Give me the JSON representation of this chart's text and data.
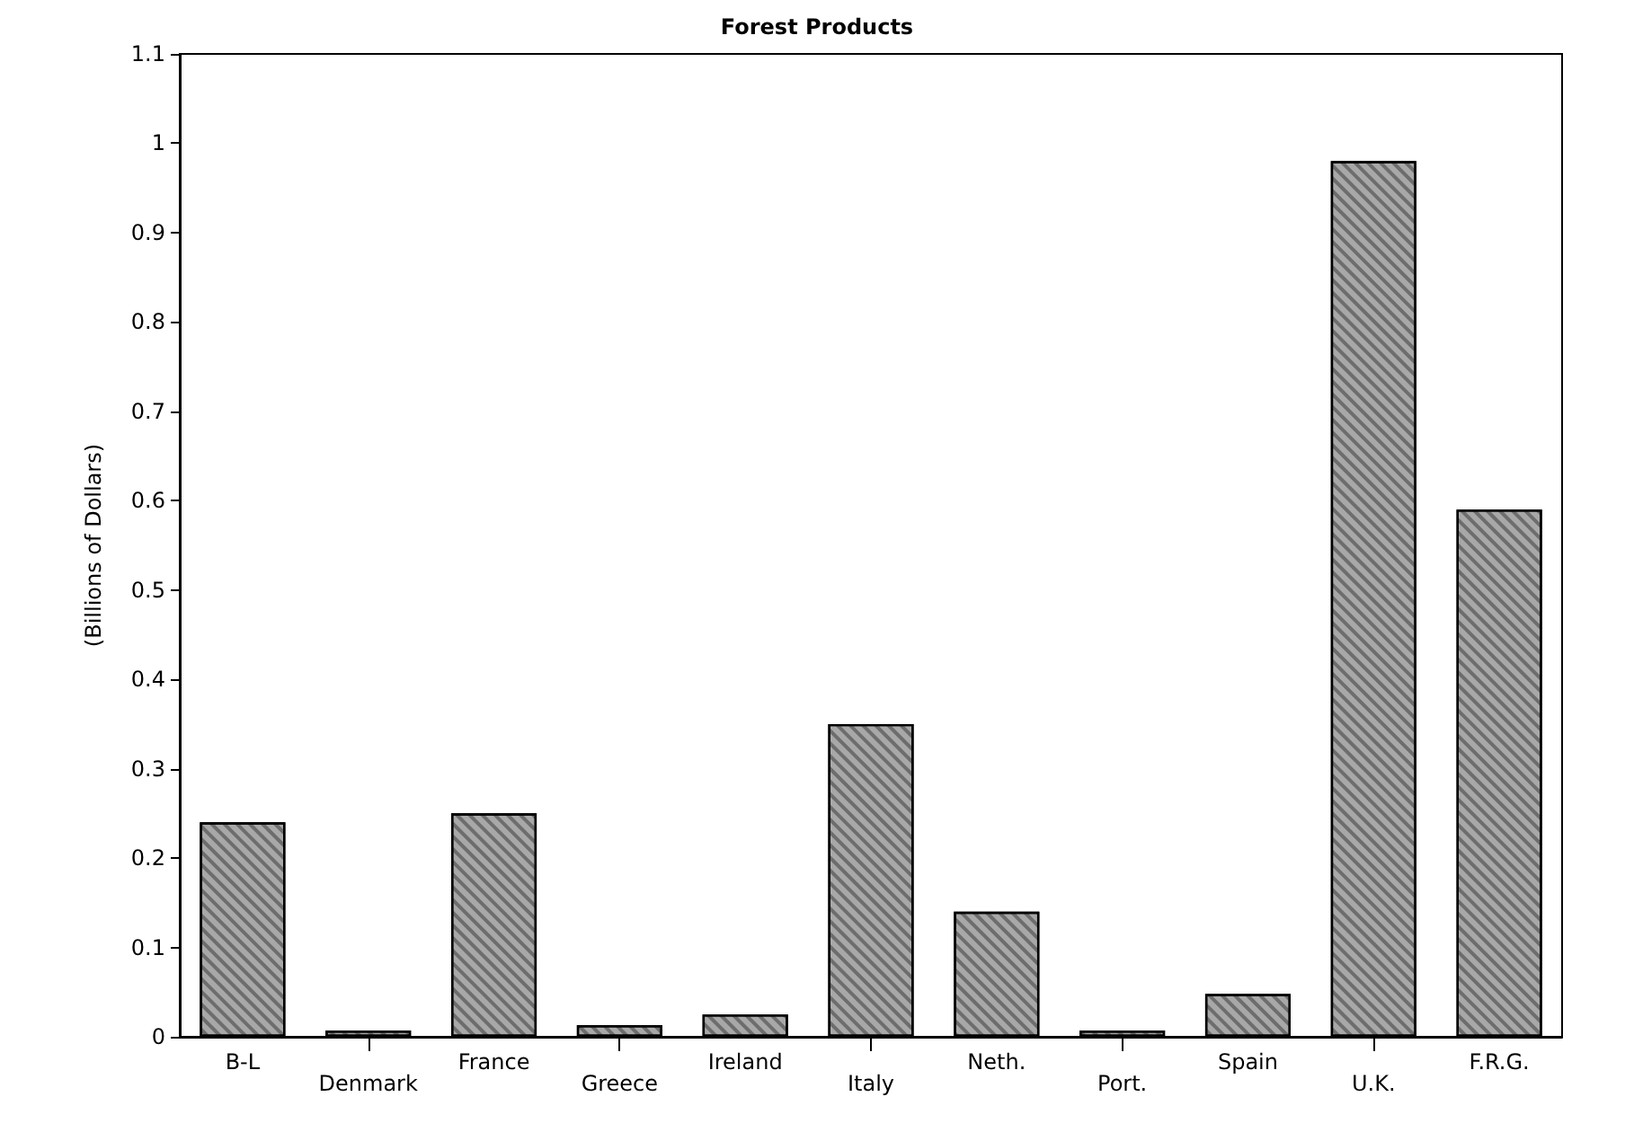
{
  "chart_data": {
    "type": "bar",
    "title": "Forest Products",
    "ylabel": "(Billions of Dollars)",
    "categories": [
      "B-L",
      "Denmark",
      "France",
      "Greece",
      "Ireland",
      "Italy",
      "Neth.",
      "Port.",
      "Spain",
      "U.K.",
      "F.R.G."
    ],
    "values": [
      0.24,
      0.007,
      0.25,
      0.013,
      0.025,
      0.35,
      0.14,
      0.007,
      0.048,
      0.98,
      0.59
    ],
    "color": "#a8a8a8",
    "ylim": [
      0,
      1.1
    ],
    "yticks": [
      0,
      0.1,
      0.2,
      0.3,
      0.4,
      0.5,
      0.6,
      0.7,
      0.8,
      0.9,
      1,
      1.1
    ],
    "grid": false
  }
}
